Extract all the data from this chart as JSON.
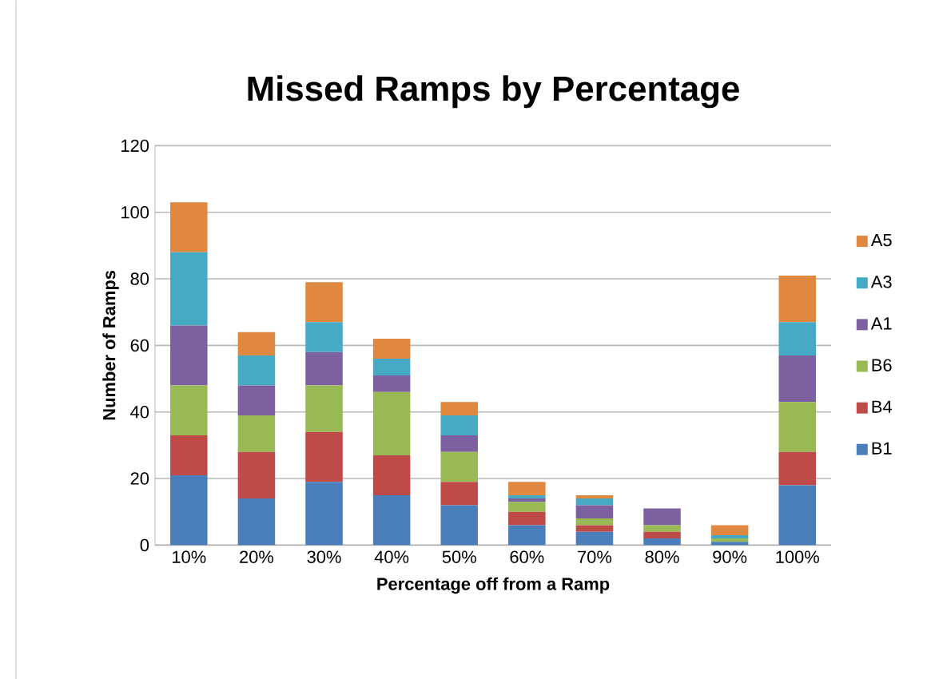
{
  "chart_data": {
    "type": "bar",
    "title": "Missed Ramps by Percentage",
    "xlabel": "Percentage off from a Ramp",
    "ylabel": "Number of Ramps",
    "categories": [
      "10%",
      "20%",
      "30%",
      "40%",
      "50%",
      "60%",
      "70%",
      "80%",
      "90%",
      "100%"
    ],
    "stacked": true,
    "ylim": [
      0,
      120
    ],
    "yticks": [
      0,
      20,
      40,
      60,
      80,
      100,
      120
    ],
    "grid": "y",
    "legend": "right",
    "series": [
      {
        "name": "B1",
        "color": "#4a7ebb",
        "values": [
          21,
          14,
          19,
          15,
          12,
          6,
          4,
          2,
          1,
          18
        ]
      },
      {
        "name": "B4",
        "color": "#be4b48",
        "values": [
          12,
          14,
          15,
          12,
          7,
          4,
          2,
          2,
          0,
          10
        ]
      },
      {
        "name": "B6",
        "color": "#98b954",
        "values": [
          15,
          11,
          14,
          19,
          9,
          3,
          2,
          2,
          1,
          15
        ]
      },
      {
        "name": "A1",
        "color": "#7d60a0",
        "values": [
          18,
          9,
          10,
          5,
          5,
          1,
          4,
          5,
          0,
          14
        ]
      },
      {
        "name": "A3",
        "color": "#46aac5",
        "values": [
          22,
          9,
          9,
          5,
          6,
          1,
          2,
          0,
          1,
          10
        ]
      },
      {
        "name": "A5",
        "color": "#e0883f",
        "values": [
          15,
          7,
          12,
          6,
          4,
          4,
          1,
          0,
          3,
          14
        ]
      }
    ]
  }
}
